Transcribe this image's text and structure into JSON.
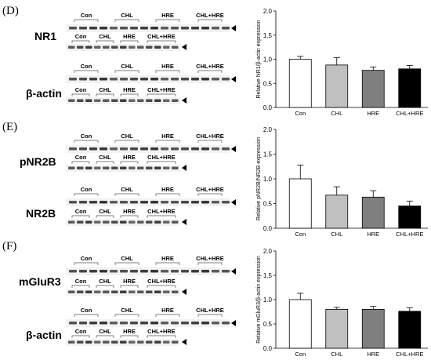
{
  "panels": [
    {
      "letter": "(D)",
      "proteins": [
        "NR1",
        "β-actin"
      ]
    },
    {
      "letter": "(E)",
      "proteins": [
        "pNR2B",
        "NR2B"
      ]
    },
    {
      "letter": "(F)",
      "proteins": [
        "mGluR3",
        "β-actin"
      ]
    }
  ],
  "blot_group_labels": [
    "Con",
    "CHL",
    "HRE",
    "CHL+HRE"
  ],
  "chart_data": [
    {
      "type": "bar",
      "categories": [
        "Con",
        "CHL",
        "HRE",
        "CHL+HRE"
      ],
      "series": [
        {
          "values": [
            1.0,
            0.88,
            0.77,
            0.8
          ],
          "errors": [
            0.06,
            0.15,
            0.07,
            0.07
          ]
        }
      ],
      "ylabel": "Relative NR1/β-actin expression",
      "ylim": [
        0,
        2.0
      ],
      "yticks": [
        "0.0",
        "0.5",
        "1.0",
        "1.5",
        "2.0"
      ],
      "colors": [
        "#ffffff",
        "#c0c0c0",
        "#7f7f7f",
        "#000000"
      ],
      "grid": false
    },
    {
      "type": "bar",
      "categories": [
        "Con",
        "CHL",
        "HRE",
        "CHL+HRE"
      ],
      "series": [
        {
          "values": [
            1.0,
            0.67,
            0.63,
            0.45
          ],
          "errors": [
            0.28,
            0.17,
            0.13,
            0.1
          ]
        }
      ],
      "ylabel": "Relative pNR2B/NR2B expression",
      "ylim": [
        0,
        2.0
      ],
      "yticks": [
        "0.0",
        "0.5",
        "1.0",
        "1.5",
        "2.0"
      ],
      "colors": [
        "#ffffff",
        "#c0c0c0",
        "#7f7f7f",
        "#000000"
      ],
      "grid": false
    },
    {
      "type": "bar",
      "categories": [
        "Con",
        "CHL",
        "HRE",
        "CHL+HRE"
      ],
      "series": [
        {
          "values": [
            1.0,
            0.8,
            0.8,
            0.76
          ],
          "errors": [
            0.13,
            0.04,
            0.06,
            0.07
          ]
        }
      ],
      "ylabel": "Relative mGluR3/β-actin expression",
      "ylim": [
        0,
        2.0
      ],
      "yticks": [
        "0.0",
        "0.5",
        "1.0",
        "1.5",
        "2.0"
      ],
      "colors": [
        "#ffffff",
        "#c0c0c0",
        "#7f7f7f",
        "#000000"
      ],
      "grid": false
    }
  ]
}
